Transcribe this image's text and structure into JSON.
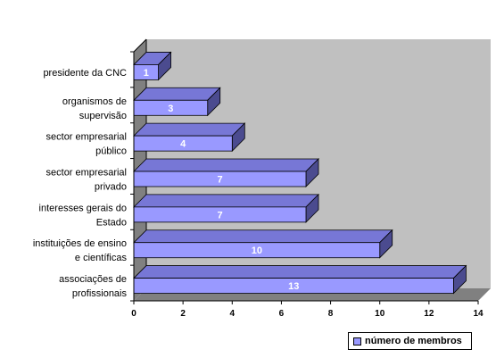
{
  "chart_data": {
    "type": "bar",
    "orientation": "horizontal",
    "three_d": true,
    "categories": [
      [
        "presidente da CNC"
      ],
      [
        "organismos de",
        "supervisão"
      ],
      [
        "sector empresarial",
        "público"
      ],
      [
        "sector empresarial",
        "privado"
      ],
      [
        "interesses gerais do",
        "Estado"
      ],
      [
        "instituições de ensino",
        "e científicas"
      ],
      [
        "associações de",
        "profissionais"
      ]
    ],
    "series": [
      {
        "name": "número de membros",
        "values": [
          1,
          3,
          4,
          7,
          7,
          10,
          13
        ]
      }
    ],
    "xlim": [
      0,
      14
    ],
    "xticks": [
      0,
      2,
      4,
      6,
      8,
      10,
      12,
      14
    ],
    "grid": false,
    "data_labels": true,
    "legend": "bottom-right",
    "colors": {
      "bar_front": "#9999ff",
      "bar_top": "#7777d6",
      "bar_side": "#4b4b8f",
      "wall": "#c0c0c0",
      "floor": "#808080",
      "label": "#ffffff"
    }
  }
}
